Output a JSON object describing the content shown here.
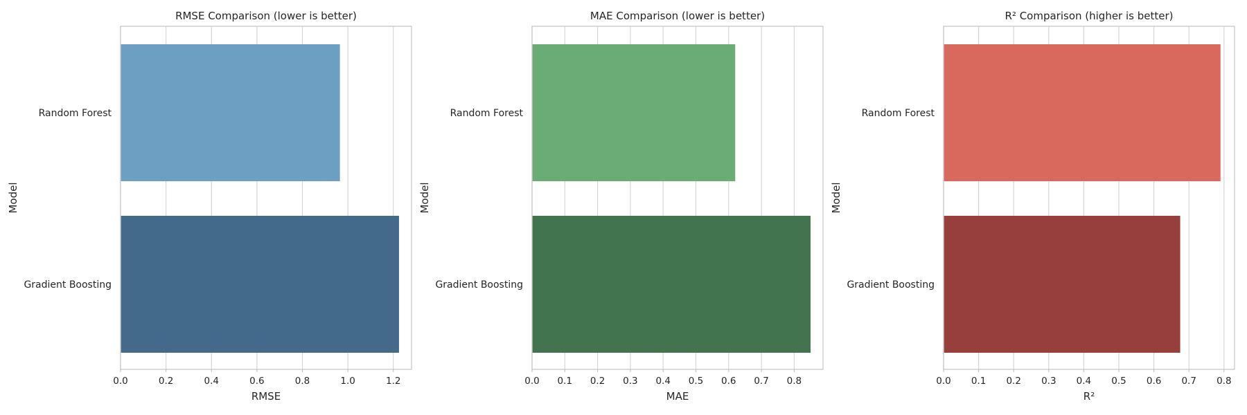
{
  "chart_data": [
    {
      "type": "bar",
      "orientation": "horizontal",
      "title": "RMSE Comparison (lower is better)",
      "xlabel": "RMSE",
      "ylabel": "Model",
      "categories": [
        "Random Forest",
        "Gradient Boosting"
      ],
      "values": [
        0.965,
        1.225
      ],
      "colors": [
        "#6c9fc2",
        "#426a89"
      ],
      "xlim": [
        0,
        1.28
      ],
      "xticks": [
        0.0,
        0.2,
        0.4,
        0.6,
        0.8,
        1.0,
        1.2
      ],
      "xtick_labels": [
        "0.0",
        "0.2",
        "0.4",
        "0.6",
        "0.8",
        "1.0",
        "1.2"
      ],
      "grid": true
    },
    {
      "type": "bar",
      "orientation": "horizontal",
      "title": "MAE Comparison (lower is better)",
      "xlabel": "MAE",
      "ylabel": "Model",
      "categories": [
        "Random Forest",
        "Gradient Boosting"
      ],
      "values": [
        0.62,
        0.85
      ],
      "colors": [
        "#6aab76",
        "#41744f"
      ],
      "xlim": [
        0,
        0.888
      ],
      "xticks": [
        0.0,
        0.1,
        0.2,
        0.3,
        0.4,
        0.5,
        0.6,
        0.7,
        0.8
      ],
      "xtick_labels": [
        "0.0",
        "0.1",
        "0.2",
        "0.3",
        "0.4",
        "0.5",
        "0.6",
        "0.7",
        "0.8"
      ],
      "grid": true
    },
    {
      "type": "bar",
      "orientation": "horizontal",
      "title": "R² Comparison (higher is better)",
      "xlabel": "R²",
      "ylabel": "Model",
      "categories": [
        "Random Forest",
        "Gradient Boosting"
      ],
      "values": [
        0.79,
        0.675
      ],
      "colors": [
        "#d8695c",
        "#963f3d"
      ],
      "xlim": [
        0,
        0.83
      ],
      "xticks": [
        0.0,
        0.1,
        0.2,
        0.3,
        0.4,
        0.5,
        0.6,
        0.7,
        0.8
      ],
      "xtick_labels": [
        "0.0",
        "0.1",
        "0.2",
        "0.3",
        "0.4",
        "0.5",
        "0.6",
        "0.7",
        "0.8"
      ],
      "grid": true
    }
  ]
}
